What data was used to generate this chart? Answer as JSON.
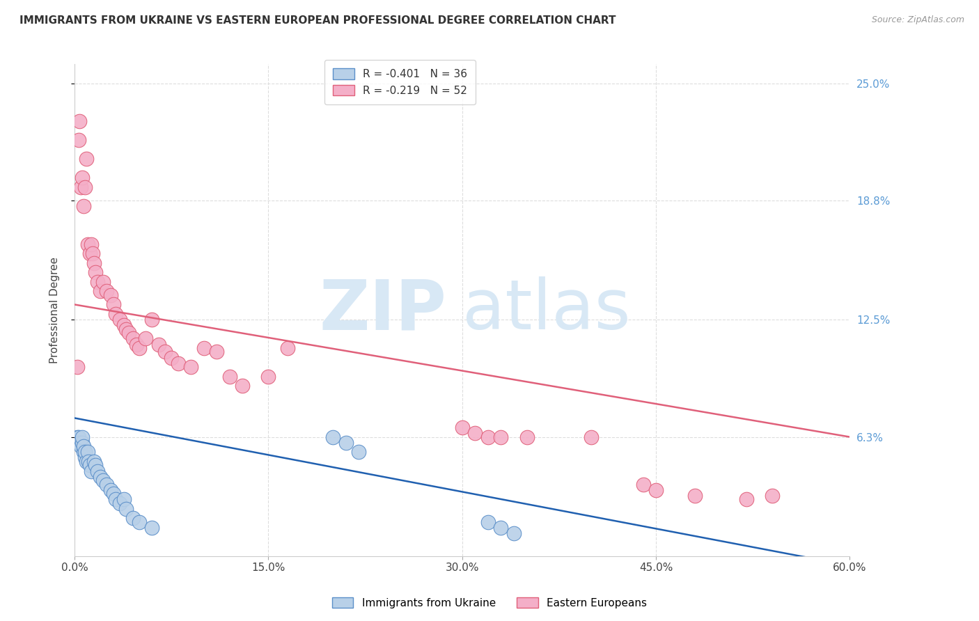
{
  "title": "IMMIGRANTS FROM UKRAINE VS EASTERN EUROPEAN PROFESSIONAL DEGREE CORRELATION CHART",
  "source": "Source: ZipAtlas.com",
  "ylabel": "Professional Degree",
  "xlim": [
    0,
    0.6
  ],
  "ylim": [
    0,
    0.26
  ],
  "yticks": [
    0.063,
    0.125,
    0.188,
    0.25
  ],
  "ytick_labels": [
    "6.3%",
    "12.5%",
    "18.8%",
    "25.0%"
  ],
  "xticks": [
    0.0,
    0.15,
    0.3,
    0.45,
    0.6
  ],
  "xtick_labels": [
    "0.0%",
    "15.0%",
    "30.0%",
    "45.0%",
    "60.0%"
  ],
  "ukraine_color": "#b8d0e8",
  "ukraine_edge": "#5b8fc9",
  "eastern_color": "#f4afc8",
  "eastern_edge": "#e0607a",
  "ukraine_R": -0.401,
  "ukraine_N": 36,
  "eastern_R": -0.219,
  "eastern_N": 52,
  "ukraine_line_color": "#2060b0",
  "eastern_line_color": "#e0607a",
  "ukraine_line_start_y": 0.073,
  "ukraine_line_end_y": -0.005,
  "eastern_line_start_y": 0.133,
  "eastern_line_end_y": 0.063,
  "background_color": "#ffffff",
  "grid_color": "#dddddd",
  "watermark_zip": "ZIP",
  "watermark_atlas": "atlas",
  "watermark_color": "#d8e8f5",
  "title_fontsize": 11,
  "axis_label_fontsize": 11,
  "tick_fontsize": 11,
  "legend_fontsize": 11,
  "right_axis_label_color": "#5b9bd5",
  "ukraine_x": [
    0.002,
    0.003,
    0.004,
    0.005,
    0.006,
    0.006,
    0.007,
    0.007,
    0.008,
    0.008,
    0.009,
    0.01,
    0.011,
    0.012,
    0.013,
    0.015,
    0.016,
    0.018,
    0.02,
    0.022,
    0.025,
    0.028,
    0.03,
    0.032,
    0.035,
    0.038,
    0.04,
    0.045,
    0.05,
    0.06,
    0.2,
    0.21,
    0.22,
    0.32,
    0.33,
    0.34
  ],
  "ukraine_y": [
    0.063,
    0.063,
    0.06,
    0.058,
    0.06,
    0.063,
    0.055,
    0.058,
    0.052,
    0.055,
    0.05,
    0.055,
    0.05,
    0.048,
    0.045,
    0.05,
    0.048,
    0.045,
    0.042,
    0.04,
    0.038,
    0.035,
    0.033,
    0.03,
    0.028,
    0.03,
    0.025,
    0.02,
    0.018,
    0.015,
    0.063,
    0.06,
    0.055,
    0.018,
    0.015,
    0.012
  ],
  "eastern_x": [
    0.002,
    0.003,
    0.004,
    0.005,
    0.006,
    0.007,
    0.008,
    0.009,
    0.01,
    0.012,
    0.013,
    0.014,
    0.015,
    0.016,
    0.018,
    0.02,
    0.022,
    0.025,
    0.028,
    0.03,
    0.032,
    0.035,
    0.038,
    0.04,
    0.042,
    0.045,
    0.048,
    0.05,
    0.055,
    0.06,
    0.065,
    0.07,
    0.075,
    0.08,
    0.09,
    0.1,
    0.11,
    0.12,
    0.13,
    0.15,
    0.165,
    0.3,
    0.31,
    0.32,
    0.33,
    0.35,
    0.4,
    0.44,
    0.45,
    0.48,
    0.52,
    0.54
  ],
  "eastern_y": [
    0.1,
    0.22,
    0.23,
    0.195,
    0.2,
    0.185,
    0.195,
    0.21,
    0.165,
    0.16,
    0.165,
    0.16,
    0.155,
    0.15,
    0.145,
    0.14,
    0.145,
    0.14,
    0.138,
    0.133,
    0.128,
    0.125,
    0.122,
    0.12,
    0.118,
    0.115,
    0.112,
    0.11,
    0.115,
    0.125,
    0.112,
    0.108,
    0.105,
    0.102,
    0.1,
    0.11,
    0.108,
    0.095,
    0.09,
    0.095,
    0.11,
    0.068,
    0.065,
    0.063,
    0.063,
    0.063,
    0.063,
    0.038,
    0.035,
    0.032,
    0.03,
    0.032
  ]
}
